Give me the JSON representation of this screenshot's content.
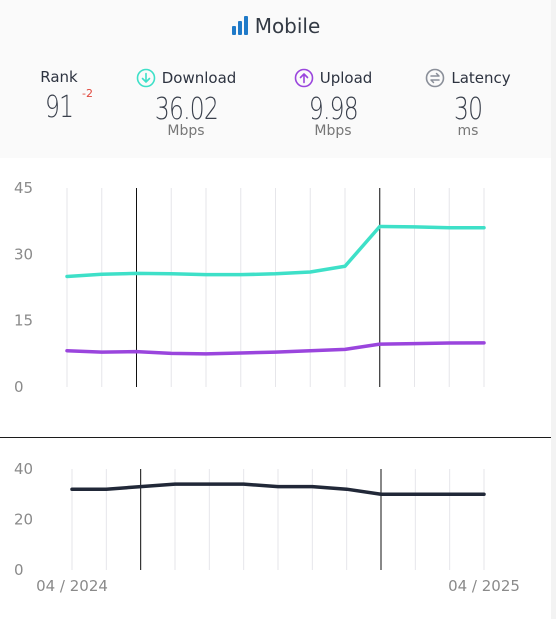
{
  "header": {
    "title": "Mobile",
    "rank": {
      "label": "Rank",
      "value": "91",
      "change": "-2"
    },
    "download": {
      "label": "Download",
      "value": "36.02",
      "unit": "Mbps"
    },
    "upload": {
      "label": "Upload",
      "value": "9.98",
      "unit": "Mbps"
    },
    "latency": {
      "label": "Latency",
      "value": "30",
      "unit": "ms"
    }
  },
  "colors": {
    "download": "#3ee0c8",
    "upload": "#9a45dd",
    "latency": "#212838"
  },
  "chart_data": [
    {
      "type": "line",
      "x": [
        "04/2024",
        "05/2024",
        "06/2024",
        "07/2024",
        "08/2024",
        "09/2024",
        "10/2024",
        "11/2024",
        "12/2024",
        "01/2025",
        "02/2025",
        "03/2025",
        "04/2025"
      ],
      "ylim": [
        0,
        45
      ],
      "yticks": [
        "45",
        "30",
        "15",
        "0"
      ],
      "highlight_x": [
        "06/2024",
        "01/2025"
      ],
      "series": [
        {
          "name": "Download",
          "values": [
            25.0,
            25.5,
            25.7,
            25.6,
            25.4,
            25.4,
            25.6,
            26.0,
            27.3,
            36.3,
            36.2,
            36.0,
            36.02
          ]
        },
        {
          "name": "Upload",
          "values": [
            8.2,
            7.9,
            8.0,
            7.6,
            7.5,
            7.7,
            7.9,
            8.2,
            8.5,
            9.7,
            9.8,
            9.95,
            9.98
          ]
        }
      ]
    },
    {
      "type": "line",
      "x": [
        "04/2024",
        "05/2024",
        "06/2024",
        "07/2024",
        "08/2024",
        "09/2024",
        "10/2024",
        "11/2024",
        "12/2024",
        "01/2025",
        "02/2025",
        "03/2025",
        "04/2025"
      ],
      "ylim": [
        0,
        40
      ],
      "yticks": [
        "40",
        "20",
        "0"
      ],
      "xtick_labels": [
        "04 / 2024",
        "04 / 2025"
      ],
      "highlight_x": [
        "06/2024",
        "01/2025"
      ],
      "series": [
        {
          "name": "Latency",
          "values": [
            32,
            32,
            33,
            34,
            34,
            34,
            33,
            33,
            32,
            30,
            30,
            30,
            30
          ]
        }
      ]
    }
  ]
}
